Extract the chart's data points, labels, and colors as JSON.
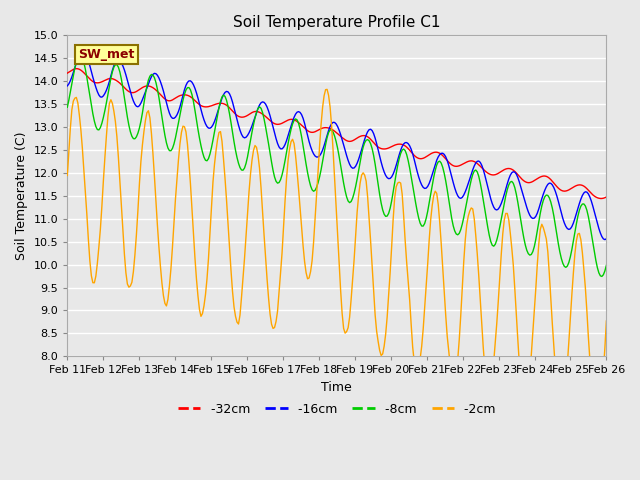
{
  "title": "Soil Temperature Profile C1",
  "xlabel": "Time",
  "ylabel": "Soil Temperature (C)",
  "ylim": [
    8.0,
    15.0
  ],
  "yticks": [
    8.0,
    8.5,
    9.0,
    9.5,
    10.0,
    10.5,
    11.0,
    11.5,
    12.0,
    12.5,
    13.0,
    13.5,
    14.0,
    14.5,
    15.0
  ],
  "x_labels": [
    "Feb 11",
    "Feb 12",
    "Feb 13",
    "Feb 14",
    "Feb 15",
    "Feb 16",
    "Feb 17",
    "Feb 18",
    "Feb 19",
    "Feb 20",
    "Feb 21",
    "Feb 22",
    "Feb 23",
    "Feb 24",
    "Feb 25",
    "Feb 26"
  ],
  "annotation_text": "SW_met",
  "annotation_color": "#8B0000",
  "annotation_bg": "#FFFF99",
  "annotation_border": "#8B7000",
  "colors": {
    "-32cm": "#FF0000",
    "-16cm": "#0000FF",
    "-8cm": "#00CC00",
    "-2cm": "#FFA500"
  },
  "background_color": "#E8E8E8",
  "plot_bg_color": "#E8E8E8",
  "grid_color": "#FFFFFF",
  "title_fontsize": 11,
  "axis_label_fontsize": 9,
  "tick_fontsize": 8,
  "legend_fontsize": 9
}
